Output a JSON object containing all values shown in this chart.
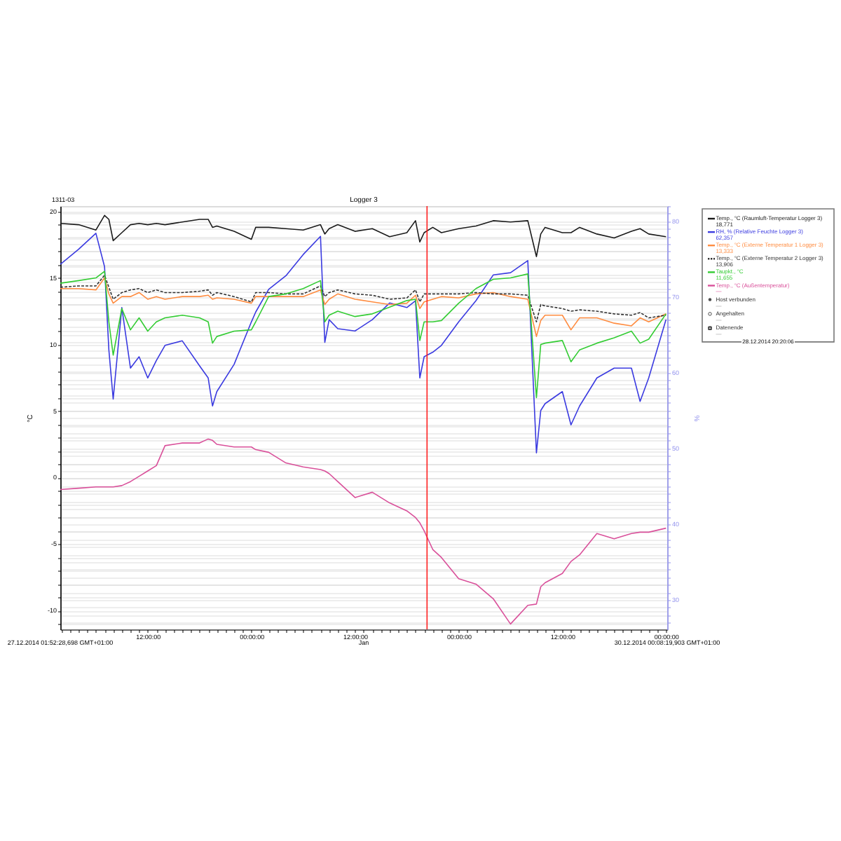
{
  "chart_data": {
    "type": "line",
    "title": "Logger 3",
    "ylabel": "°C",
    "y2label": "%",
    "x": [
      "2014-12-27T01:53",
      "2014-12-27T04:00",
      "2014-12-27T06:00",
      "2014-12-27T07:00",
      "2014-12-27T07:30",
      "2014-12-27T08:00",
      "2014-12-27T09:00",
      "2014-12-27T10:00",
      "2014-12-27T11:00",
      "2014-12-27T12:00",
      "2014-12-27T13:00",
      "2014-12-27T14:00",
      "2014-12-27T16:00",
      "2014-12-27T18:00",
      "2014-12-27T19:00",
      "2014-12-27T19:30",
      "2014-12-27T20:00",
      "2014-12-27T22:00",
      "2014-12-28T00:00",
      "2014-12-28T00:30",
      "2014-12-28T02:00",
      "2014-12-28T04:00",
      "2014-12-28T06:00",
      "2014-12-28T08:00",
      "2014-12-28T08:30",
      "2014-12-28T09:00",
      "2014-12-28T10:00",
      "2014-12-28T12:00",
      "2014-12-28T14:00",
      "2014-12-28T16:00",
      "2014-12-28T18:00",
      "2014-12-28T19:00",
      "2014-12-28T19:30",
      "2014-12-28T20:00",
      "2014-12-28T21:00",
      "2014-12-28T22:00",
      "2014-12-29T00:00",
      "2014-12-29T02:00",
      "2014-12-29T04:00",
      "2014-12-29T06:00",
      "2014-12-29T08:00",
      "2014-12-29T09:00",
      "2014-12-29T09:30",
      "2014-12-29T10:00",
      "2014-12-29T12:00",
      "2014-12-29T13:00",
      "2014-12-29T14:00",
      "2014-12-29T16:00",
      "2014-12-29T18:00",
      "2014-12-29T20:00",
      "2014-12-29T21:00",
      "2014-12-29T22:00",
      "2014-12-30T00:00"
    ],
    "series": [
      {
        "name": "Temp., °C (Raumluft-Temperatur Logger 3)",
        "color": "#1a1a1a",
        "values": [
          19.1,
          19.0,
          18.6,
          19.7,
          19.4,
          17.8,
          18.4,
          19.0,
          19.1,
          19.0,
          19.1,
          19.0,
          19.2,
          19.4,
          19.4,
          18.8,
          18.9,
          18.5,
          17.9,
          18.8,
          18.8,
          18.7,
          18.6,
          19.0,
          18.3,
          18.7,
          19.0,
          18.5,
          18.7,
          18.1,
          18.4,
          19.3,
          17.7,
          18.4,
          18.8,
          18.4,
          18.7,
          18.9,
          19.3,
          19.2,
          19.3,
          16.6,
          18.3,
          18.8,
          18.4,
          18.4,
          18.8,
          18.3,
          18.0,
          18.5,
          18.7,
          18.3,
          18.1
        ]
      },
      {
        "name": "RH, % (Relative Feuchte Logger 3)",
        "color": "#3a3ae0",
        "axis": "y2",
        "values": [
          74.3,
          76.3,
          78.4,
          74.0,
          63.0,
          56.5,
          68.6,
          60.6,
          62.1,
          59.3,
          61.6,
          63.6,
          64.2,
          60.9,
          59.3,
          55.6,
          57.5,
          61.1,
          66.7,
          68.0,
          71.0,
          72.8,
          75.6,
          78.0,
          64.0,
          67.0,
          65.8,
          65.5,
          67.0,
          69.2,
          68.6,
          69.5,
          59.3,
          62.1,
          62.7,
          63.6,
          66.7,
          69.5,
          72.9,
          73.2,
          74.8,
          49.4,
          55.0,
          55.9,
          57.5,
          53.1,
          55.6,
          59.3,
          60.6,
          60.6,
          56.2,
          59.3,
          67.0
        ]
      },
      {
        "name": "Temp., °C (Externe Temperatur 1 Logger 3)",
        "color": "#ff8c40",
        "values": [
          14.2,
          14.2,
          14.1,
          15.0,
          13.8,
          13.1,
          13.6,
          13.6,
          13.9,
          13.4,
          13.6,
          13.4,
          13.6,
          13.6,
          13.7,
          13.4,
          13.5,
          13.4,
          13.1,
          13.6,
          13.6,
          13.6,
          13.6,
          14.1,
          13.0,
          13.4,
          13.8,
          13.4,
          13.2,
          13.0,
          13.1,
          13.7,
          12.7,
          13.2,
          13.4,
          13.6,
          13.5,
          13.8,
          13.9,
          13.6,
          13.4,
          10.6,
          11.8,
          12.2,
          12.2,
          11.1,
          12.0,
          12.0,
          11.6,
          11.4,
          12.0,
          11.7,
          12.3
        ]
      },
      {
        "name": "Temp., °C (Externe Temperatur 2 Logger 3)",
        "color": "#333333",
        "line_style": "dashed",
        "values": [
          14.3,
          14.4,
          14.4,
          15.2,
          14.3,
          13.4,
          13.9,
          14.1,
          14.2,
          13.9,
          14.1,
          13.9,
          13.9,
          14.0,
          14.1,
          13.7,
          13.9,
          13.6,
          13.2,
          13.9,
          13.9,
          13.8,
          13.8,
          14.4,
          13.6,
          13.9,
          14.1,
          13.8,
          13.7,
          13.4,
          13.5,
          14.1,
          13.2,
          13.8,
          13.8,
          13.8,
          13.8,
          13.9,
          13.8,
          13.8,
          13.7,
          11.7,
          13.0,
          12.9,
          12.7,
          12.5,
          12.6,
          12.5,
          12.3,
          12.2,
          12.4,
          12.0,
          12.2
        ]
      },
      {
        "name": "Taupkt., °C",
        "color": "#33cc33",
        "values": [
          14.6,
          14.8,
          15.0,
          15.5,
          11.7,
          9.2,
          12.7,
          11.1,
          12.0,
          11.0,
          11.7,
          12.0,
          12.2,
          12.0,
          11.7,
          10.1,
          10.6,
          11.0,
          11.1,
          11.7,
          13.6,
          13.8,
          14.2,
          14.8,
          11.7,
          12.2,
          12.5,
          12.1,
          12.3,
          12.8,
          13.3,
          13.4,
          10.3,
          11.7,
          11.7,
          11.8,
          13.1,
          14.2,
          14.9,
          15.0,
          15.3,
          6.0,
          10.0,
          10.1,
          10.3,
          8.7,
          9.6,
          10.1,
          10.5,
          11.0,
          10.1,
          10.4,
          12.3
        ]
      },
      {
        "name": "Temp., °C (Außentemperatur)",
        "color": "#d9509a",
        "values": [
          -0.9,
          -0.8,
          -0.7,
          -0.7,
          -0.7,
          -0.7,
          -0.6,
          -0.3,
          0.1,
          0.5,
          0.9,
          2.4,
          2.6,
          2.6,
          2.9,
          2.8,
          2.5,
          2.3,
          2.3,
          2.1,
          1.9,
          1.1,
          0.8,
          0.6,
          0.5,
          0.3,
          -0.3,
          -1.5,
          -1.1,
          -1.9,
          -2.5,
          -3.0,
          -3.4,
          -4.0,
          -5.4,
          -6.0,
          -7.6,
          -8.0,
          -9.1,
          -11.0,
          -9.6,
          -9.5,
          -8.2,
          -7.9,
          -7.2,
          -6.3,
          -5.8,
          -4.2,
          -4.6,
          -4.2,
          -4.1,
          -4.1,
          -3.8
        ]
      }
    ],
    "xlim": [
      "2014-12-27T01:52:28.698",
      "2014-12-30T00:08:19.903"
    ],
    "xticks": [
      {
        "value": "2014-12-27T02:00",
        "label": null
      },
      {
        "value": "2014-12-27T03:00",
        "label": null
      },
      {
        "value": "2014-12-27T04:00",
        "label": null
      },
      {
        "value": "2014-12-27T05:00",
        "label": null
      },
      {
        "value": "2014-12-27T06:00",
        "label": null
      },
      {
        "value": "2014-12-27T07:00",
        "label": null
      },
      {
        "value": "2014-12-27T08:00",
        "label": null
      },
      {
        "value": "2014-12-27T09:00",
        "label": null
      },
      {
        "value": "2014-12-27T10:00",
        "label": null
      },
      {
        "value": "2014-12-27T11:00",
        "label": null
      },
      {
        "value": "2014-12-27T12:00",
        "label": "12:00:00"
      },
      {
        "value": "2014-12-27T13:00",
        "label": null
      },
      {
        "value": "2014-12-27T14:00",
        "label": null
      },
      {
        "value": "2014-12-27T15:00",
        "label": null
      },
      {
        "value": "2014-12-27T16:00",
        "label": null
      },
      {
        "value": "2014-12-27T17:00",
        "label": null
      },
      {
        "value": "2014-12-27T18:00",
        "label": null
      },
      {
        "value": "2014-12-27T19:00",
        "label": null
      },
      {
        "value": "2014-12-27T20:00",
        "label": null
      },
      {
        "value": "2014-12-27T21:00",
        "label": null
      },
      {
        "value": "2014-12-27T22:00",
        "label": null
      },
      {
        "value": "2014-12-27T23:00",
        "label": null
      },
      {
        "value": "2014-12-28T00:00",
        "label": "00:00:00"
      },
      {
        "value": "2014-12-28T01:00",
        "label": null
      },
      {
        "value": "2014-12-28T02:00",
        "label": null
      },
      {
        "value": "2014-12-28T03:00",
        "label": null
      },
      {
        "value": "2014-12-28T04:00",
        "label": null
      },
      {
        "value": "2014-12-28T05:00",
        "label": null
      },
      {
        "value": "2014-12-28T06:00",
        "label": null
      },
      {
        "value": "2014-12-28T07:00",
        "label": null
      },
      {
        "value": "2014-12-28T08:00",
        "label": null
      },
      {
        "value": "2014-12-28T09:00",
        "label": null
      },
      {
        "value": "2014-12-28T10:00",
        "label": null
      },
      {
        "value": "2014-12-28T11:00",
        "label": null
      },
      {
        "value": "2014-12-28T12:00",
        "label": "12:00:00"
      },
      {
        "value": "2014-12-28T13:00",
        "label": null
      },
      {
        "value": "2014-12-28T14:00",
        "label": null
      },
      {
        "value": "2014-12-28T15:00",
        "label": null
      },
      {
        "value": "2014-12-28T16:00",
        "label": null
      },
      {
        "value": "2014-12-28T17:00",
        "label": null
      },
      {
        "value": "2014-12-28T18:00",
        "label": null
      },
      {
        "value": "2014-12-28T19:00",
        "label": null
      },
      {
        "value": "2014-12-28T20:00",
        "label": null
      },
      {
        "value": "2014-12-28T21:00",
        "label": null
      },
      {
        "value": "2014-12-28T22:00",
        "label": null
      },
      {
        "value": "2014-12-28T23:00",
        "label": null
      },
      {
        "value": "2014-12-29T00:00",
        "label": "00:00:00"
      },
      {
        "value": "2014-12-29T01:00",
        "label": null
      },
      {
        "value": "2014-12-29T02:00",
        "label": null
      },
      {
        "value": "2014-12-29T03:00",
        "label": null
      },
      {
        "value": "2014-12-29T04:00",
        "label": null
      },
      {
        "value": "2014-12-29T05:00",
        "label": null
      },
      {
        "value": "2014-12-29T06:00",
        "label": null
      },
      {
        "value": "2014-12-29T07:00",
        "label": null
      },
      {
        "value": "2014-12-29T08:00",
        "label": null
      },
      {
        "value": "2014-12-29T09:00",
        "label": null
      },
      {
        "value": "2014-12-29T10:00",
        "label": null
      },
      {
        "value": "2014-12-29T11:00",
        "label": null
      },
      {
        "value": "2014-12-29T12:00",
        "label": "12:00:00"
      },
      {
        "value": "2014-12-29T13:00",
        "label": null
      },
      {
        "value": "2014-12-29T14:00",
        "label": null
      },
      {
        "value": "2014-12-29T15:00",
        "label": null
      },
      {
        "value": "2014-12-29T16:00",
        "label": null
      },
      {
        "value": "2014-12-29T17:00",
        "label": null
      },
      {
        "value": "2014-12-29T18:00",
        "label": null
      },
      {
        "value": "2014-12-29T19:00",
        "label": null
      },
      {
        "value": "2014-12-29T20:00",
        "label": null
      },
      {
        "value": "2014-12-29T21:00",
        "label": null
      },
      {
        "value": "2014-12-29T22:00",
        "label": null
      },
      {
        "value": "2014-12-29T23:00",
        "label": null
      },
      {
        "value": "2014-12-30T00:00",
        "label": "00:00:00"
      }
    ],
    "ylim": [
      -11.4,
      20.4
    ],
    "yticks": [
      {
        "value": -11,
        "label": null
      },
      -10,
      {
        "value": -9,
        "label": null
      },
      {
        "value": -8,
        "label": null
      },
      {
        "value": -7,
        "label": null
      },
      {
        "value": -6,
        "label": null
      },
      -5,
      {
        "value": -4,
        "label": null
      },
      {
        "value": -3,
        "label": null
      },
      {
        "value": -2,
        "label": null
      },
      {
        "value": -1,
        "label": null
      },
      0,
      {
        "value": 1,
        "label": null
      },
      {
        "value": 2,
        "label": null
      },
      {
        "value": 3,
        "label": null
      },
      {
        "value": 4,
        "label": null
      },
      5,
      {
        "value": 6,
        "label": null
      },
      {
        "value": 7,
        "label": null
      },
      {
        "value": 8,
        "label": null
      },
      {
        "value": 9,
        "label": null
      },
      10,
      {
        "value": 11,
        "label": null
      },
      {
        "value": 12,
        "label": null
      },
      {
        "value": 13,
        "label": null
      },
      {
        "value": 14,
        "label": null
      },
      15,
      {
        "value": 16,
        "label": null
      },
      {
        "value": 17,
        "label": null
      },
      {
        "value": 18,
        "label": null
      },
      {
        "value": 19,
        "label": null
      },
      20
    ],
    "y2lim": [
      26.1,
      82.0
    ],
    "y2ticks": [
      {
        "value": 27,
        "label": null
      },
      {
        "value": 28,
        "label": null
      },
      {
        "value": 29,
        "label": null
      },
      30,
      {
        "value": 31,
        "label": null
      },
      {
        "value": 32,
        "label": null
      },
      {
        "value": 33,
        "label": null
      },
      {
        "value": 34,
        "label": null
      },
      {
        "value": 35,
        "label": null
      },
      {
        "value": 36,
        "label": null
      },
      {
        "value": 37,
        "label": null
      },
      {
        "value": 38,
        "label": null
      },
      {
        "value": 39,
        "label": null
      },
      40,
      {
        "value": 41,
        "label": null
      },
      {
        "value": 42,
        "label": null
      },
      {
        "value": 43,
        "label": null
      },
      {
        "value": 44,
        "label": null
      },
      {
        "value": 45,
        "label": null
      },
      {
        "value": 46,
        "label": null
      },
      {
        "value": 47,
        "label": null
      },
      {
        "value": 48,
        "label": null
      },
      {
        "value": 49,
        "label": null
      },
      50,
      {
        "value": 51,
        "label": null
      },
      {
        "value": 52,
        "label": null
      },
      {
        "value": 53,
        "label": null
      },
      {
        "value": 54,
        "label": null
      },
      {
        "value": 55,
        "label": null
      },
      {
        "value": 56,
        "label": null
      },
      {
        "value": 57,
        "label": null
      },
      {
        "value": 58,
        "label": null
      },
      {
        "value": 59,
        "label": null
      },
      60,
      {
        "value": 61,
        "label": null
      },
      {
        "value": 62,
        "label": null
      },
      {
        "value": 63,
        "label": null
      },
      {
        "value": 64,
        "label": null
      },
      {
        "value": 65,
        "label": null
      },
      {
        "value": 66,
        "label": null
      },
      {
        "value": 67,
        "label": null
      },
      {
        "value": 68,
        "label": null
      },
      {
        "value": 69,
        "label": null
      },
      70,
      {
        "value": 71,
        "label": null
      },
      {
        "value": 72,
        "label": null
      },
      {
        "value": 73,
        "label": null
      },
      {
        "value": 74,
        "label": null
      },
      {
        "value": 75,
        "label": null
      },
      {
        "value": 76,
        "label": null
      },
      {
        "value": 77,
        "label": null
      },
      {
        "value": 78,
        "label": null
      },
      {
        "value": 79,
        "label": null
      },
      80,
      {
        "value": 81,
        "label": null
      },
      {
        "value": 82,
        "label": null
      }
    ],
    "ref_lines": [
      {
        "axis": "x",
        "value": "2014-12-28T20:20:06",
        "color": "#ff2020"
      }
    ],
    "annotations": [
      "1311-03",
      "18,771",
      "62,357",
      "13,333",
      "13,906",
      "11,655",
      "—",
      "Host verbunden",
      "—",
      "Angehalten",
      "—",
      "Datenende",
      "—",
      "28.12.2014 20:20:06",
      "27.12.2014 01:52:28,698 GMT+01:00",
      "Jan",
      "30.12.2014 00:08:19,903 GMT+01:00"
    ],
    "grid": "y",
    "legend": "right",
    "line_style": "solid"
  }
}
